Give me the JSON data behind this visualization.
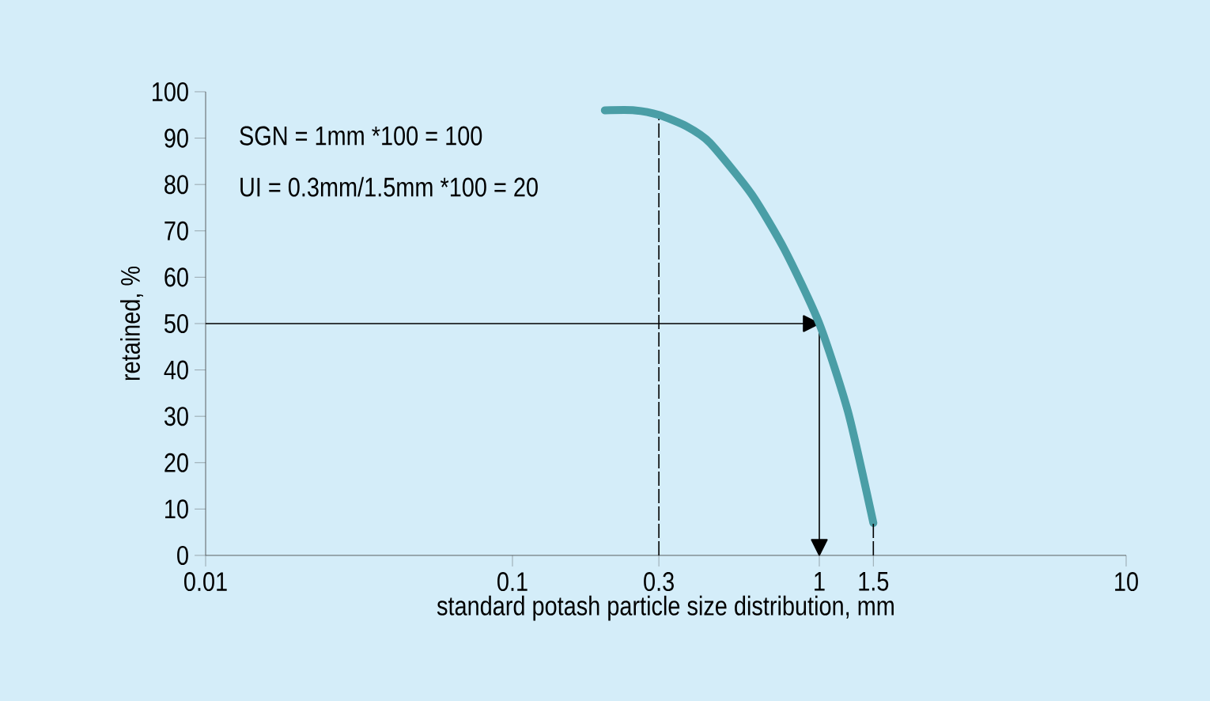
{
  "chart_data": {
    "type": "line",
    "xlabel": "standard potash particle size distribution, mm",
    "ylabel": "retained, %",
    "annotations": [
      "SGN = 1mm *100 = 100",
      "UI = 0.3mm/1.5mm *100 = 20"
    ],
    "log": "x",
    "xlim": [
      0.01,
      10
    ],
    "xticks": [
      0.01,
      0.1,
      0.3,
      1,
      1.5,
      10
    ],
    "ylim": [
      0,
      100
    ],
    "yticks": [
      0,
      10,
      20,
      30,
      40,
      50,
      60,
      70,
      80,
      90,
      100
    ],
    "x": [
      0.2,
      0.25,
      0.3,
      0.37,
      0.44,
      0.6,
      0.77,
      1,
      1.24,
      1.5
    ],
    "series": [
      {
        "color": "#4a9ea6",
        "values": [
          96,
          96,
          95,
          92.5,
          89,
          78,
          66,
          50,
          31,
          7
        ]
      },
      {
        "type": "line",
        "color": "#000000",
        "line_style": "dashed",
        "x": [
          1.5,
          1.5
        ],
        "values": [
          0,
          7
        ]
      }
    ],
    "ref_lines": [
      {
        "axis": "x",
        "value": 0.3,
        "line_style": "dashed"
      },
      {
        "axis": "y",
        "value": 50,
        "line_style": "solid"
      },
      {
        "axis": "x",
        "value": 1,
        "line_style": "solid"
      }
    ],
    "grid": false,
    "marker": "none",
    "line_style": "solid"
  }
}
